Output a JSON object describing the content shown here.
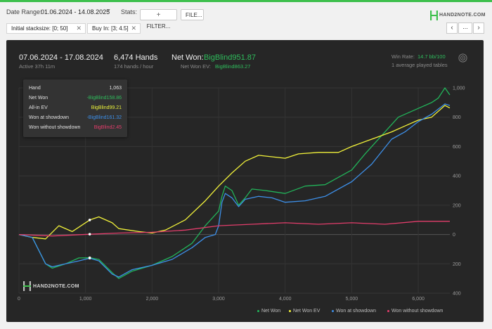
{
  "toolbar": {
    "date_range_label": "Date Range:",
    "date_range_value": "01.06.2024 - 14.08.2025",
    "stats_label": "Stats:",
    "filter_button": "FILTER...",
    "file_button": "FILE...",
    "logo_text": "HAND2NOTE.COM"
  },
  "filters": [
    {
      "label": "Initial stacksize: [0; 50]"
    },
    {
      "label": "Buy In: [3; 4.5]"
    }
  ],
  "nav": {
    "prev": "‹",
    "more": "...",
    "next": "›"
  },
  "summary": {
    "period": "07.06.2024 - 17.08.2024",
    "active": "Active 37h 11m",
    "hands": "6,474 Hands",
    "hands_rate": "174 hands / hour",
    "net_won_label": "Net Won:",
    "net_won_value": "BigBlind951.87",
    "net_won_ev_label": "Net Won  EV:",
    "net_won_ev_value": "BigBlind863.27",
    "win_rate_label": "Win Rate:",
    "win_rate_value": "14.7 bb/100",
    "avg_tables": "1 average played tables"
  },
  "tooltip": {
    "rows": [
      {
        "label": "Hand",
        "value": "1,063",
        "color": "#e0e0e0"
      },
      {
        "label": "Net Won",
        "value": "-BigBlind158.86",
        "color": "#2fbc5c"
      },
      {
        "label": "All-in EV",
        "value": "BigBlind99.21",
        "color": "#e8ef3a"
      },
      {
        "label": "Won at showdown",
        "value": "-BigBlind161.32",
        "color": "#3d8fe8"
      },
      {
        "label": "Won without showdown",
        "value": "BigBlind2.45",
        "color": "#e23d6b"
      }
    ]
  },
  "watermark": "HAND2NOTE.COM",
  "colors": {
    "net_won": "#22b45a",
    "all_in_ev": "#f2f23a",
    "showdown": "#3d8fe8",
    "no_showdown": "#e23d6b",
    "accent": "#3ec04d"
  },
  "chart_data": {
    "type": "line",
    "x_ticks": [
      0,
      1000,
      2000,
      3000,
      4000,
      5000,
      6000
    ],
    "x_tick_labels": [
      "0",
      "1,000",
      "2,000",
      "3,000",
      "4,000",
      "5,000",
      "6,000"
    ],
    "y_ticks": [
      -400,
      -200,
      0,
      200,
      400,
      600,
      800,
      1000
    ],
    "y_tick_labels": [
      "400",
      "200",
      "0",
      "200",
      "400",
      "600",
      "800",
      "1,000"
    ],
    "xlim": [
      0,
      6474
    ],
    "ylim": [
      -400,
      1000
    ],
    "grid": true,
    "legend_position": "bottom-right",
    "series": [
      {
        "name": "Net Won",
        "color": "#22b45a",
        "x": [
          0,
          200,
          400,
          500,
          700,
          900,
          1063,
          1200,
          1400,
          1500,
          1700,
          2000,
          2300,
          2600,
          2800,
          3000,
          3050,
          3100,
          3200,
          3300,
          3400,
          3500,
          3700,
          4000,
          4300,
          4600,
          5000,
          5200,
          5500,
          5700,
          6000,
          6200,
          6300,
          6400,
          6474
        ],
        "y": [
          0,
          -20,
          -200,
          -230,
          -200,
          -160,
          -159,
          -170,
          -260,
          -300,
          -250,
          -210,
          -150,
          -60,
          60,
          160,
          260,
          330,
          300,
          200,
          250,
          310,
          300,
          280,
          330,
          340,
          440,
          550,
          700,
          800,
          860,
          900,
          930,
          1000,
          952
        ]
      },
      {
        "name": "Net Won  EV",
        "color": "#f2f23a",
        "x": [
          0,
          200,
          400,
          600,
          800,
          1063,
          1200,
          1400,
          1500,
          1800,
          2000,
          2200,
          2500,
          2800,
          3000,
          3200,
          3400,
          3600,
          3800,
          4000,
          4200,
          4500,
          4800,
          5000,
          5300,
          5600,
          5800,
          6000,
          6200,
          6400,
          6474
        ],
        "y": [
          0,
          -20,
          -30,
          60,
          20,
          99,
          120,
          80,
          40,
          20,
          10,
          30,
          100,
          230,
          330,
          420,
          500,
          540,
          530,
          520,
          550,
          560,
          560,
          600,
          650,
          700,
          740,
          780,
          800,
          880,
          863
        ]
      },
      {
        "name": "Won at showdown",
        "color": "#3d8fe8",
        "x": [
          0,
          200,
          400,
          500,
          700,
          900,
          1063,
          1200,
          1400,
          1500,
          1700,
          2000,
          2300,
          2600,
          2800,
          2950,
          3000,
          3050,
          3100,
          3200,
          3300,
          3400,
          3600,
          3800,
          4000,
          4300,
          4600,
          5000,
          5300,
          5600,
          5800,
          6000,
          6200,
          6400,
          6474
        ],
        "y": [
          0,
          -20,
          -200,
          -220,
          -200,
          -180,
          -161,
          -180,
          -270,
          -290,
          -240,
          -210,
          -170,
          -90,
          -20,
          0,
          60,
          220,
          280,
          250,
          190,
          240,
          260,
          250,
          220,
          230,
          260,
          360,
          480,
          650,
          700,
          770,
          820,
          890,
          880
        ]
      },
      {
        "name": "Won without showdown",
        "color": "#e23d6b",
        "x": [
          0,
          500,
          1063,
          1500,
          2000,
          2500,
          3000,
          3500,
          4000,
          4500,
          5000,
          5500,
          6000,
          6474
        ],
        "y": [
          0,
          -10,
          2,
          10,
          15,
          30,
          60,
          70,
          80,
          70,
          80,
          70,
          90,
          90
        ]
      }
    ]
  }
}
